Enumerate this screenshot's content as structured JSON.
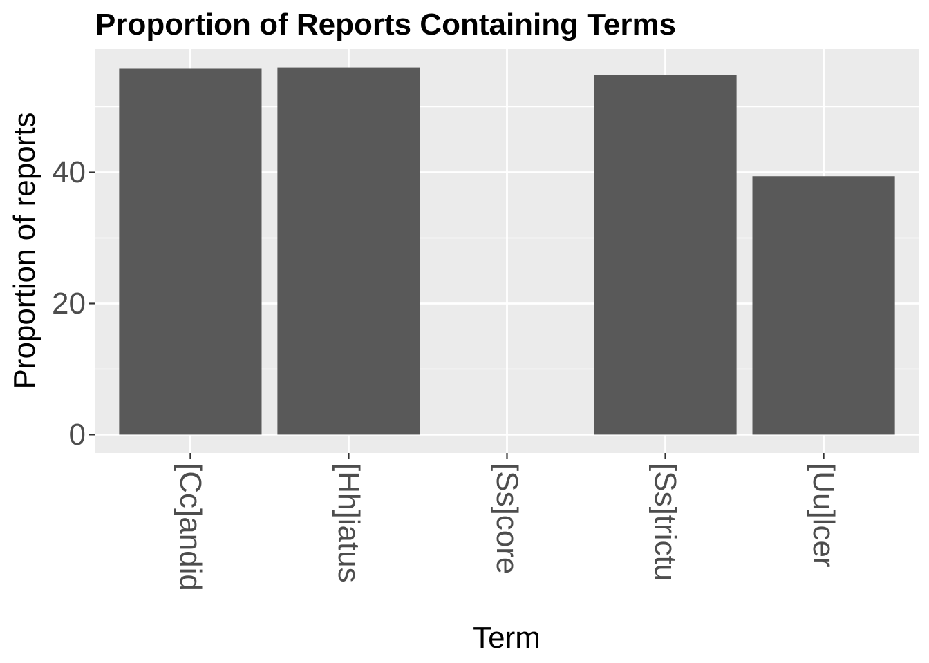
{
  "chart_data": {
    "type": "bar",
    "title": "Proportion of Reports Containing Terms",
    "xlabel": "Term",
    "ylabel": "Proportion of reports",
    "categories": [
      "[Cc]andid",
      "[Hh]iatus",
      "[Ss]core",
      "[Ss]trictu",
      "[Uu]lcer"
    ],
    "values": [
      55.8,
      56.0,
      0,
      54.8,
      39.4
    ],
    "ylim": [
      -2.8,
      58.8
    ],
    "yticks": [
      0,
      20,
      40
    ],
    "grid": true,
    "legend": "none",
    "bar_color": "#595959",
    "panel_color": "#ebebeb",
    "grid_color": "#ffffff"
  }
}
